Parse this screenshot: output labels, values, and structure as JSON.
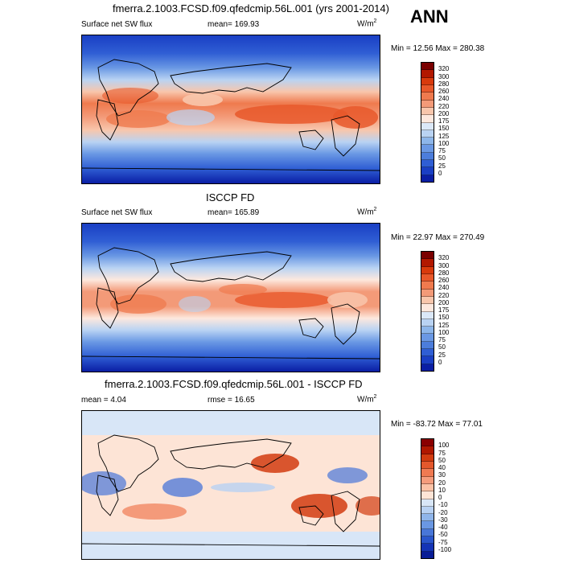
{
  "season": "ANN",
  "panels": [
    {
      "title": "fmerra.2.1003.FCSD.f09.qfedcmip.56L.001 (yrs 2001-2014)",
      "variable": "Surface net SW flux",
      "stat1": "mean= 169.93",
      "stat2": "",
      "units": "W/m",
      "units_exp": "2",
      "minmax": "Min =  12.56 Max = 280.38",
      "colorbar": {
        "labels": [
          "320",
          "300",
          "280",
          "260",
          "240",
          "220",
          "200",
          "175",
          "150",
          "125",
          "100",
          "75",
          "50",
          "25",
          "0"
        ],
        "colors": [
          "#7a0000",
          "#b21800",
          "#d83a0c",
          "#e8582a",
          "#ef7a4e",
          "#f39a78",
          "#f8c6ac",
          "#fde8de",
          "#dbe8f8",
          "#b9d3f3",
          "#8db6ea",
          "#6a98e4",
          "#4c7ddb",
          "#2f5ed4",
          "#1a3fc4",
          "#0a1ea4"
        ]
      },
      "map_type": "field"
    },
    {
      "title": "ISCCP FD",
      "variable": "Surface net SW flux",
      "stat1": "mean= 165.89",
      "stat2": "",
      "units": "W/m",
      "units_exp": "2",
      "minmax": "Min =  22.97 Max = 270.49",
      "colorbar": {
        "labels": [
          "320",
          "300",
          "280",
          "260",
          "240",
          "220",
          "200",
          "175",
          "150",
          "125",
          "100",
          "75",
          "50",
          "25",
          "0"
        ],
        "colors": [
          "#7a0000",
          "#b21800",
          "#d83a0c",
          "#e8582a",
          "#ef7a4e",
          "#f39a78",
          "#f8c6ac",
          "#fde8de",
          "#dbe8f8",
          "#b9d3f3",
          "#8db6ea",
          "#6a98e4",
          "#4c7ddb",
          "#2f5ed4",
          "#1a3fc4",
          "#0a1ea4"
        ]
      },
      "map_type": "field"
    },
    {
      "title": "fmerra.2.1003.FCSD.f09.qfedcmip.56L.001 - ISCCP FD",
      "variable": "mean =   4.04",
      "stat1": "rmse =  16.65",
      "stat2": "",
      "units": "W/m",
      "units_exp": "2",
      "minmax": "Min = -83.72 Max =  77.01",
      "colorbar": {
        "labels": [
          "100",
          "75",
          "50",
          "40",
          "30",
          "20",
          "10",
          "0",
          "-10",
          "-20",
          "-30",
          "-40",
          "-50",
          "-75",
          "-100"
        ],
        "colors": [
          "#8a0000",
          "#b01800",
          "#d23c10",
          "#e4582c",
          "#ef7a52",
          "#f59c7c",
          "#fbc2a6",
          "#fde4d6",
          "#d8e6f7",
          "#b8d1f2",
          "#8fb5ea",
          "#6a97e2",
          "#4876d8",
          "#2a56cc",
          "#1434b6",
          "#081c96"
        ]
      },
      "map_type": "diff"
    }
  ]
}
